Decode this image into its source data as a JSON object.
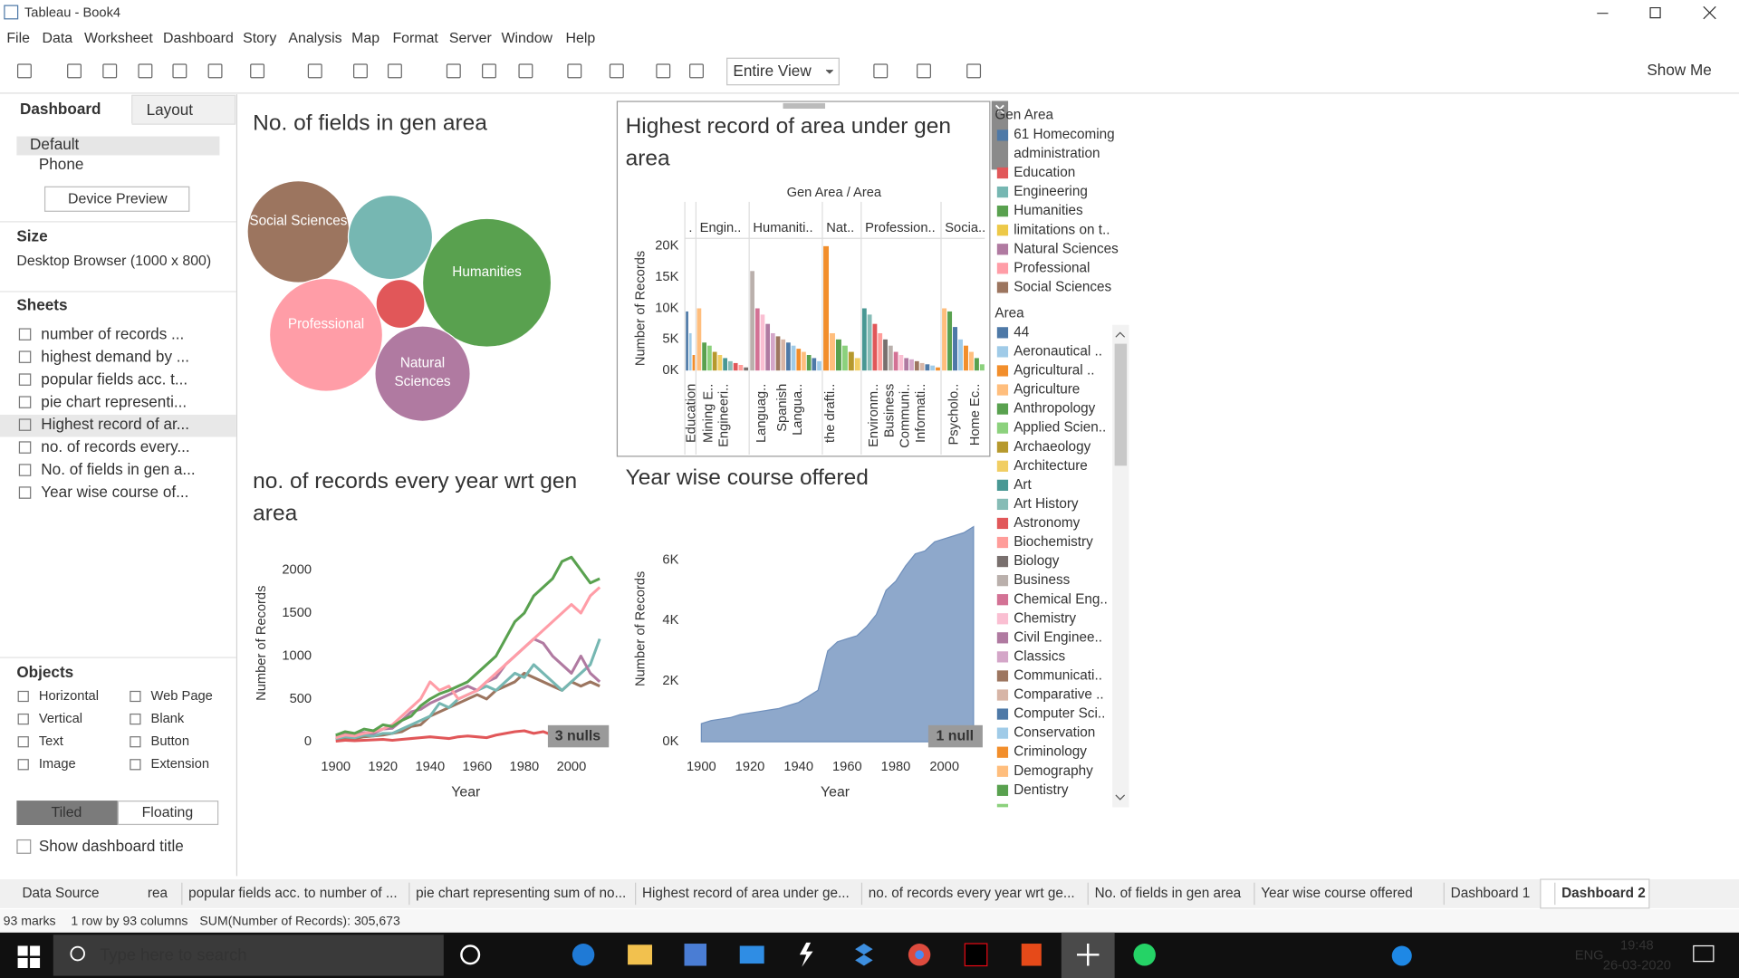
{
  "window": {
    "title": "Tableau - Book4"
  },
  "menu": [
    "File",
    "Data",
    "Worksheet",
    "Dashboard",
    "Story",
    "Analysis",
    "Map",
    "Format",
    "Server",
    "Window",
    "Help"
  ],
  "toolbar": {
    "fit": "Entire View",
    "show_me": "Show Me"
  },
  "sidebar": {
    "tabs": [
      "Dashboard",
      "Layout"
    ],
    "devices": [
      "Default",
      "Phone"
    ],
    "device_preview": "Device Preview",
    "size_heading": "Size",
    "size": "Desktop Browser (1000 x 800)",
    "sheets_heading": "Sheets",
    "sheets": [
      "number of records ...",
      "highest demand by ...",
      "popular fields acc. t...",
      "pie chart representi...",
      "Highest record of ar...",
      "no. of records every...",
      "No. of fields in gen a...",
      "Year wise course of..."
    ],
    "objects_heading": "Objects",
    "objects": [
      "Horizontal",
      "Web Page",
      "Vertical",
      "Blank",
      "Text",
      "Button",
      "Image",
      "Extension"
    ],
    "layout_modes": [
      "Tiled",
      "Floating"
    ],
    "show_title": "Show dashboard title"
  },
  "dashboard": {
    "bubble_chart": {
      "type": "bubble",
      "title": "No. of fields in gen area",
      "categories": [
        "Social Sciences",
        null,
        "Humanities",
        "Professional",
        null,
        "Natural Sciences"
      ],
      "values": [
        2116,
        1444,
        3364,
        2601,
        484,
        1849
      ],
      "colors": [
        "#9c755f",
        "#76b7b2",
        "#59a14f",
        "#ff9da7",
        "#e15759",
        "#b07aa1"
      ]
    },
    "bar_chart": {
      "type": "bar",
      "title": "Highest record of area under gen area",
      "axis_title": "Gen Area / Area",
      "ylabel": "Number of Records",
      "ylim": [
        -1400,
        21250
      ],
      "yticks": [
        {
          "value": 0,
          "label": "0K"
        },
        {
          "value": 5000,
          "label": "5K"
        },
        {
          "value": 10000,
          "label": "10K"
        },
        {
          "value": 15000,
          "label": "15K"
        },
        {
          "value": 20000,
          "label": "20K"
        }
      ],
      "panels": [
        {
          "name": ".",
          "categories": [
            "Education",
            null,
            null
          ],
          "values": [
            9500,
            6000,
            2500
          ]
        },
        {
          "name": "Engin..",
          "categories": [
            null,
            "Mining E..",
            null,
            null,
            "Engineeri..",
            null,
            null,
            null,
            null,
            null
          ],
          "values": [
            10000,
            4500,
            4000,
            3000,
            2500,
            2000,
            1500,
            1200,
            900,
            500
          ]
        },
        {
          "name": "Humaniti..",
          "categories": [
            null,
            "Languag..",
            null,
            null,
            null,
            "Spanish",
            null,
            null,
            "Langua..",
            null,
            null,
            null,
            null,
            null
          ],
          "values": [
            16000,
            10000,
            9000,
            7500,
            6000,
            5500,
            5000,
            4500,
            4000,
            3500,
            3000,
            2500,
            2000,
            1500
          ]
        },
        {
          "name": "Nat..",
          "categories": [
            "the drafti..",
            null,
            null,
            null,
            null,
            null
          ],
          "values": [
            20000,
            6000,
            5000,
            4000,
            3000,
            2000
          ]
        },
        {
          "name": "Profession..",
          "categories": [
            null,
            "Environm..",
            null,
            null,
            "Business",
            null,
            null,
            "Communi..",
            null,
            null,
            "Informati..",
            null,
            null,
            null,
            null
          ],
          "values": [
            10000,
            9000,
            7500,
            6000,
            5000,
            4000,
            3000,
            2500,
            2000,
            1800,
            1500,
            1200,
            1000,
            800,
            500
          ]
        },
        {
          "name": "Socia..",
          "categories": [
            null,
            "Psycholo..",
            null,
            null,
            null,
            "Home Ec..",
            null,
            null
          ],
          "values": [
            10000,
            9500,
            7000,
            5000,
            4000,
            3000,
            2000,
            1000
          ]
        }
      ]
    },
    "line_chart": {
      "type": "line",
      "title": "no. of records every year wrt gen area",
      "xlabel": "Year",
      "ylabel": "Number of Records",
      "x": [
        1900,
        1904,
        1908,
        1912,
        1916,
        1920,
        1924,
        1928,
        1932,
        1936,
        1940,
        1944,
        1948,
        1952,
        1956,
        1960,
        1964,
        1968,
        1972,
        1976,
        1980,
        1984,
        1988,
        1992,
        1996,
        2000,
        2004,
        2008,
        2012
      ],
      "xlim": [
        1894,
        2014
      ],
      "ylim": [
        -140,
        2440
      ],
      "xticks": [
        1900,
        1920,
        1940,
        1960,
        1980,
        2000
      ],
      "yticks": [
        0,
        500,
        1000,
        1500,
        2000
      ],
      "null_badge": "3 nulls",
      "series": [
        {
          "color": "#9c755f",
          "values": [
            30,
            50,
            40,
            60,
            70,
            80,
            100,
            120,
            180,
            200,
            300,
            350,
            400,
            450,
            500,
            550,
            500,
            600,
            650,
            700,
            800,
            750,
            700,
            650,
            600,
            700,
            650,
            700,
            650
          ]
        },
        {
          "color": "#e15759",
          "values": [
            10,
            20,
            15,
            20,
            25,
            30,
            20,
            30,
            40,
            50,
            60,
            50,
            40,
            60,
            70,
            60,
            50,
            80,
            100,
            120,
            130,
            100,
            120,
            80,
            90,
            100,
            110,
            60,
            90
          ]
        },
        {
          "color": "#76b7b2",
          "values": [
            40,
            60,
            50,
            80,
            70,
            100,
            100,
            150,
            200,
            250,
            300,
            450,
            400,
            500,
            550,
            600,
            650,
            600,
            700,
            800,
            750,
            900,
            800,
            700,
            600,
            700,
            800,
            900,
            1200
          ]
        },
        {
          "color": "#b07aa1",
          "values": [
            60,
            90,
            80,
            110,
            100,
            150,
            160,
            250,
            350,
            380,
            450,
            500,
            550,
            600,
            650,
            600,
            700,
            750,
            900,
            1000,
            1100,
            1200,
            1150,
            1000,
            900,
            800,
            1000,
            800,
            700
          ]
        },
        {
          "color": "#ff9da7",
          "values": [
            50,
            80,
            70,
            100,
            120,
            150,
            200,
            300,
            400,
            500,
            700,
            600,
            650,
            500,
            550,
            600,
            700,
            800,
            900,
            1000,
            1100,
            1200,
            1300,
            1400,
            1500,
            1600,
            1500,
            1700,
            1800
          ]
        },
        {
          "color": "#59a14f",
          "values": [
            80,
            120,
            100,
            150,
            130,
            200,
            180,
            250,
            300,
            420,
            500,
            560,
            600,
            650,
            700,
            800,
            900,
            1000,
            1200,
            1400,
            1500,
            1700,
            1800,
            1900,
            2100,
            2150,
            2000,
            1850,
            1900
          ]
        }
      ]
    },
    "area_chart": {
      "type": "area",
      "title": "Year wise course offered",
      "xlabel": "Year",
      "ylabel": "Number of Records",
      "x": [
        1900,
        1904,
        1908,
        1912,
        1916,
        1920,
        1924,
        1928,
        1932,
        1936,
        1940,
        1944,
        1948,
        1952,
        1956,
        1960,
        1964,
        1968,
        1972,
        1976,
        1980,
        1984,
        1988,
        1992,
        1996,
        2000,
        2004,
        2008,
        2012
      ],
      "values": [
        600,
        700,
        750,
        800,
        900,
        950,
        1000,
        1050,
        1100,
        1200,
        1300,
        1500,
        1700,
        3000,
        3300,
        3400,
        3500,
        3800,
        4200,
        5000,
        5300,
        5800,
        6200,
        6300,
        6600,
        6700,
        6800,
        6900,
        7100
      ],
      "color": "#8ea8cb",
      "xlim": [
        1898,
        2013
      ],
      "ylim": [
        -330,
        7830
      ],
      "xticks": [
        1900,
        1920,
        1940,
        1960,
        1980,
        2000
      ],
      "yticks": [
        {
          "value": 0,
          "label": "0K"
        },
        {
          "value": 2000,
          "label": "2K"
        },
        {
          "value": 4000,
          "label": "4K"
        },
        {
          "value": 6000,
          "label": "6K"
        }
      ],
      "null_badge": "1 null"
    },
    "gen_area_legend": {
      "title": "Gen Area",
      "items": [
        {
          "name": "61 Homecoming administration",
          "color": "#4e79a7"
        },
        {
          "name": "Education",
          "color": "#e15759"
        },
        {
          "name": "Engineering",
          "color": "#76b7b2"
        },
        {
          "name": "Humanities",
          "color": "#59a14f"
        },
        {
          "name": "limitations on t..",
          "color": "#edc948"
        },
        {
          "name": "Natural Sciences",
          "color": "#b07aa1"
        },
        {
          "name": "Professional",
          "color": "#ff9da7"
        },
        {
          "name": "Social Sciences",
          "color": "#9c755f"
        }
      ]
    },
    "area_legend": {
      "title": "Area",
      "items": [
        {
          "name": "44",
          "color": "#4e79a7"
        },
        {
          "name": "Aeronautical ..",
          "color": "#a0cbe8"
        },
        {
          "name": "Agricultural ..",
          "color": "#f28e2b"
        },
        {
          "name": "Agriculture",
          "color": "#ffbe7d"
        },
        {
          "name": "Anthropology",
          "color": "#59a14f"
        },
        {
          "name": "Applied Scien..",
          "color": "#8cd17d"
        },
        {
          "name": "Archaeology",
          "color": "#b6992d"
        },
        {
          "name": "Architecture",
          "color": "#f1ce63"
        },
        {
          "name": "Art",
          "color": "#499894"
        },
        {
          "name": "Art History",
          "color": "#86bcb6"
        },
        {
          "name": "Astronomy",
          "color": "#e15759"
        },
        {
          "name": "Biochemistry",
          "color": "#ff9d9a"
        },
        {
          "name": "Biology",
          "color": "#79706e"
        },
        {
          "name": "Business",
          "color": "#bab0ac"
        },
        {
          "name": "Chemical Eng..",
          "color": "#d37295"
        },
        {
          "name": "Chemistry",
          "color": "#fabfd2"
        },
        {
          "name": "Civil Enginee..",
          "color": "#b07aa1"
        },
        {
          "name": "Classics",
          "color": "#d4a6c8"
        },
        {
          "name": "Communicati..",
          "color": "#9d7660"
        },
        {
          "name": "Comparative ..",
          "color": "#d7b5a6"
        },
        {
          "name": "Computer Sci..",
          "color": "#4e79a7"
        },
        {
          "name": "Conservation",
          "color": "#a0cbe8"
        },
        {
          "name": "Criminology",
          "color": "#f28e2b"
        },
        {
          "name": "Demography",
          "color": "#ffbe7d"
        },
        {
          "name": "Dentistry",
          "color": "#59a14f"
        }
      ]
    }
  },
  "sheet_tabs": [
    "Data Source",
    "rea",
    "popular fields acc. to number of ...",
    "pie chart representing sum of no...",
    "Highest record of area under ge...",
    "no. of records every year wrt ge...",
    "No. of fields in gen area",
    "Year wise course offered",
    "Dashboard 1",
    "Dashboard 2"
  ],
  "status_bar": [
    "93 marks",
    "1 row by 93 columns",
    "SUM(Number of Records): 305,673"
  ],
  "taskbar": {
    "search": "Type here to search",
    "language": "ENG",
    "time": "19:48",
    "date": "26-03-2020"
  }
}
